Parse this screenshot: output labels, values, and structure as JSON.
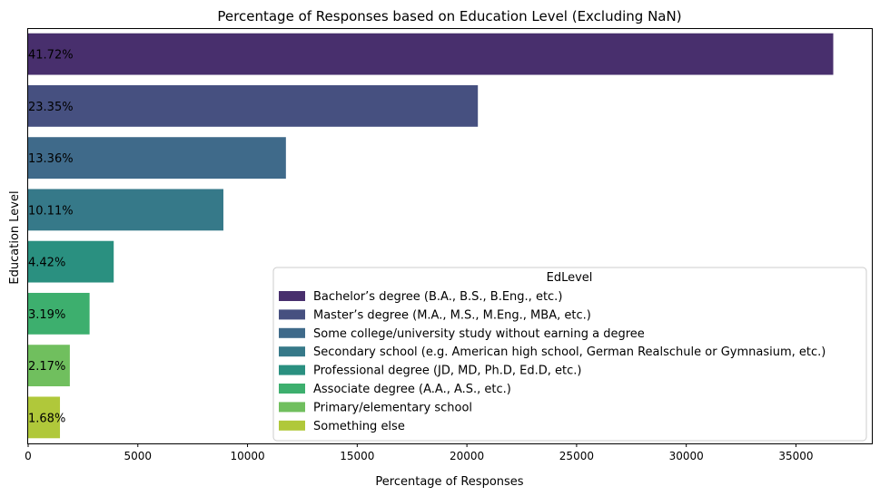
{
  "chart_data": {
    "type": "bar",
    "orientation": "horizontal",
    "title": "Percentage of Responses based on Education Level (Excluding NaN)",
    "xlabel": "Percentage of Responses",
    "ylabel": "Education Level",
    "xlim": [
      0,
      38500
    ],
    "xticks": [
      0,
      5000,
      10000,
      15000,
      20000,
      25000,
      30000,
      35000
    ],
    "grid": false,
    "legend": {
      "title": "EdLevel",
      "placement": "lower-right"
    },
    "categories": [
      "Bachelor’s degree (B.A., B.S., B.Eng., etc.)",
      "Master’s degree (M.A., M.S., M.Eng., MBA, etc.)",
      "Some college/university study without earning a degree",
      "Secondary school (e.g. American high school, German Realschule or Gymnasium, etc.)",
      "Professional degree (JD, MD, Ph.D, Ed.D, etc.)",
      "Associate degree (A.A., A.S., etc.)",
      "Primary/elementary school",
      "Something else"
    ],
    "values": [
      36700,
      20500,
      11750,
      8900,
      3900,
      2800,
      1900,
      1450
    ],
    "data_labels": [
      "41.72%",
      "23.35%",
      "13.36%",
      "10.11%",
      "4.42%",
      "3.19%",
      "2.17%",
      "1.68%"
    ],
    "colors": [
      "#482f6d",
      "#465080",
      "#3f6a8a",
      "#367989",
      "#2a9080",
      "#3daf6e",
      "#70bf5e",
      "#b0c83a"
    ]
  }
}
